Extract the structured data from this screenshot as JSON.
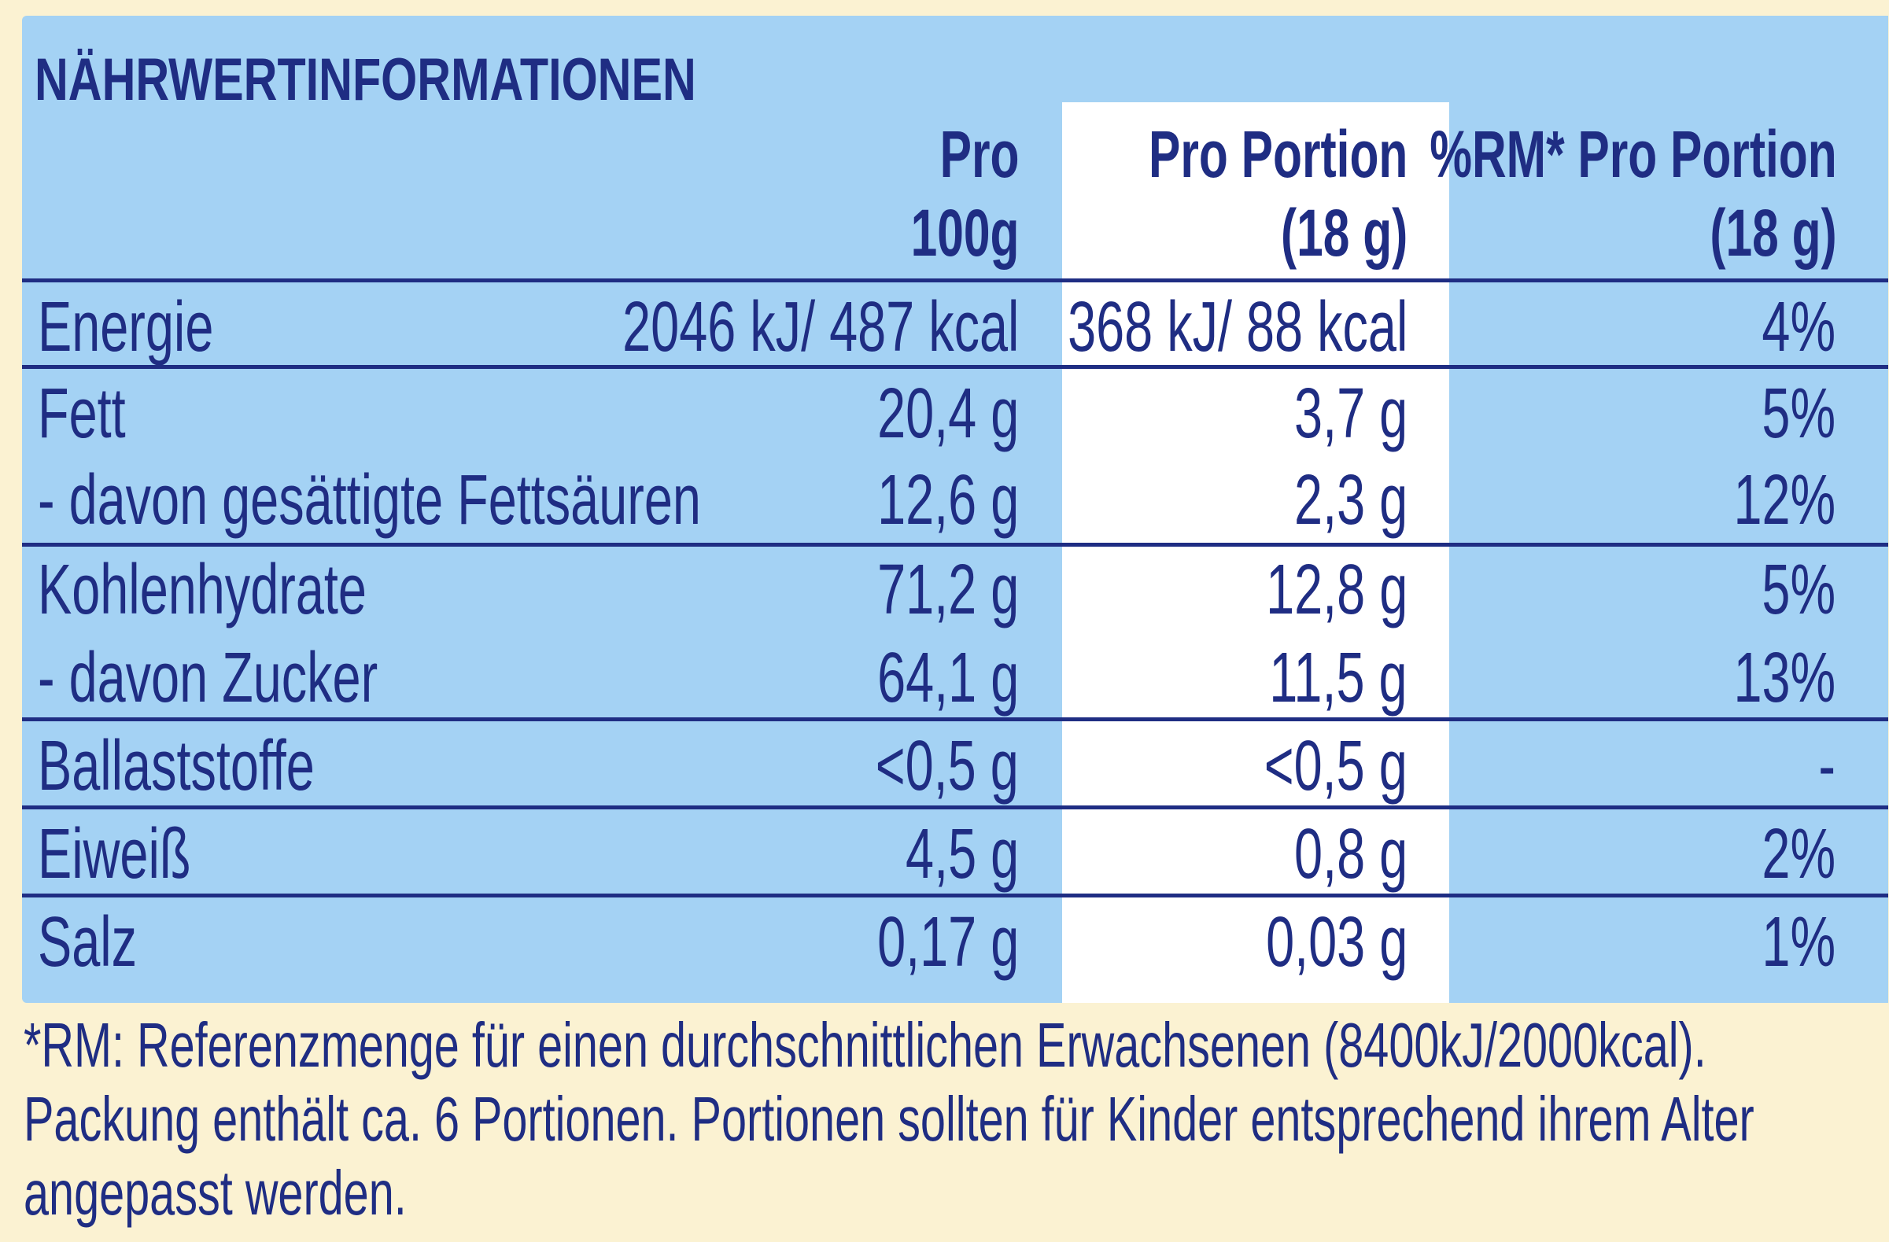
{
  "title": "NÄHRWERTINFORMATIONEN",
  "headers": {
    "col1_line1": "Pro",
    "col1_line2": "100g",
    "col2_line1": "Pro Portion",
    "col2_line2": "(18 g)",
    "col3_line1": "%RM* Pro Portion",
    "col3_line2": "(18 g)"
  },
  "rows": [
    {
      "label": "Energie",
      "per100": "2046 kJ/ 487 kcal",
      "perPortion": "368 kJ/ 88 kcal",
      "rm": "4%"
    },
    {
      "label": "Fett",
      "per100": "20,4 g",
      "perPortion": "3,7 g",
      "rm": "5%"
    },
    {
      "label": "- davon gesättigte Fettsäuren",
      "per100": "12,6 g",
      "perPortion": "2,3 g",
      "rm": "12%"
    },
    {
      "label": "Kohlenhydrate",
      "per100": "71,2 g",
      "perPortion": "12,8 g",
      "rm": "5%"
    },
    {
      "label": "- davon Zucker",
      "per100": "64,1 g",
      "perPortion": "11,5 g",
      "rm": "13%"
    },
    {
      "label": "Ballaststoffe",
      "per100": "<0,5 g",
      "perPortion": "<0,5 g",
      "rm": "-"
    },
    {
      "label": "Eiweiß",
      "per100": "4,5 g",
      "perPortion": "0,8 g",
      "rm": "2%"
    },
    {
      "label": "Salz",
      "per100": "0,17 g",
      "perPortion": "0,03 g",
      "rm": "1%"
    }
  ],
  "footnote": {
    "line1": "*RM:  Referenzmenge  für  einen  durchschnittlichen  Erwachsenen  (8400kJ/2000kcal).",
    "line2": "Packung enthält ca. 6 Portionen. Portionen sollten für Kinder entsprechend ihrem Alter",
    "line3": "angepasst  werden."
  },
  "colors": {
    "background": "#fbf2d2",
    "panel": "#a4d2f4",
    "highlight_column": "#ffffff",
    "text": "#1f2d83"
  }
}
